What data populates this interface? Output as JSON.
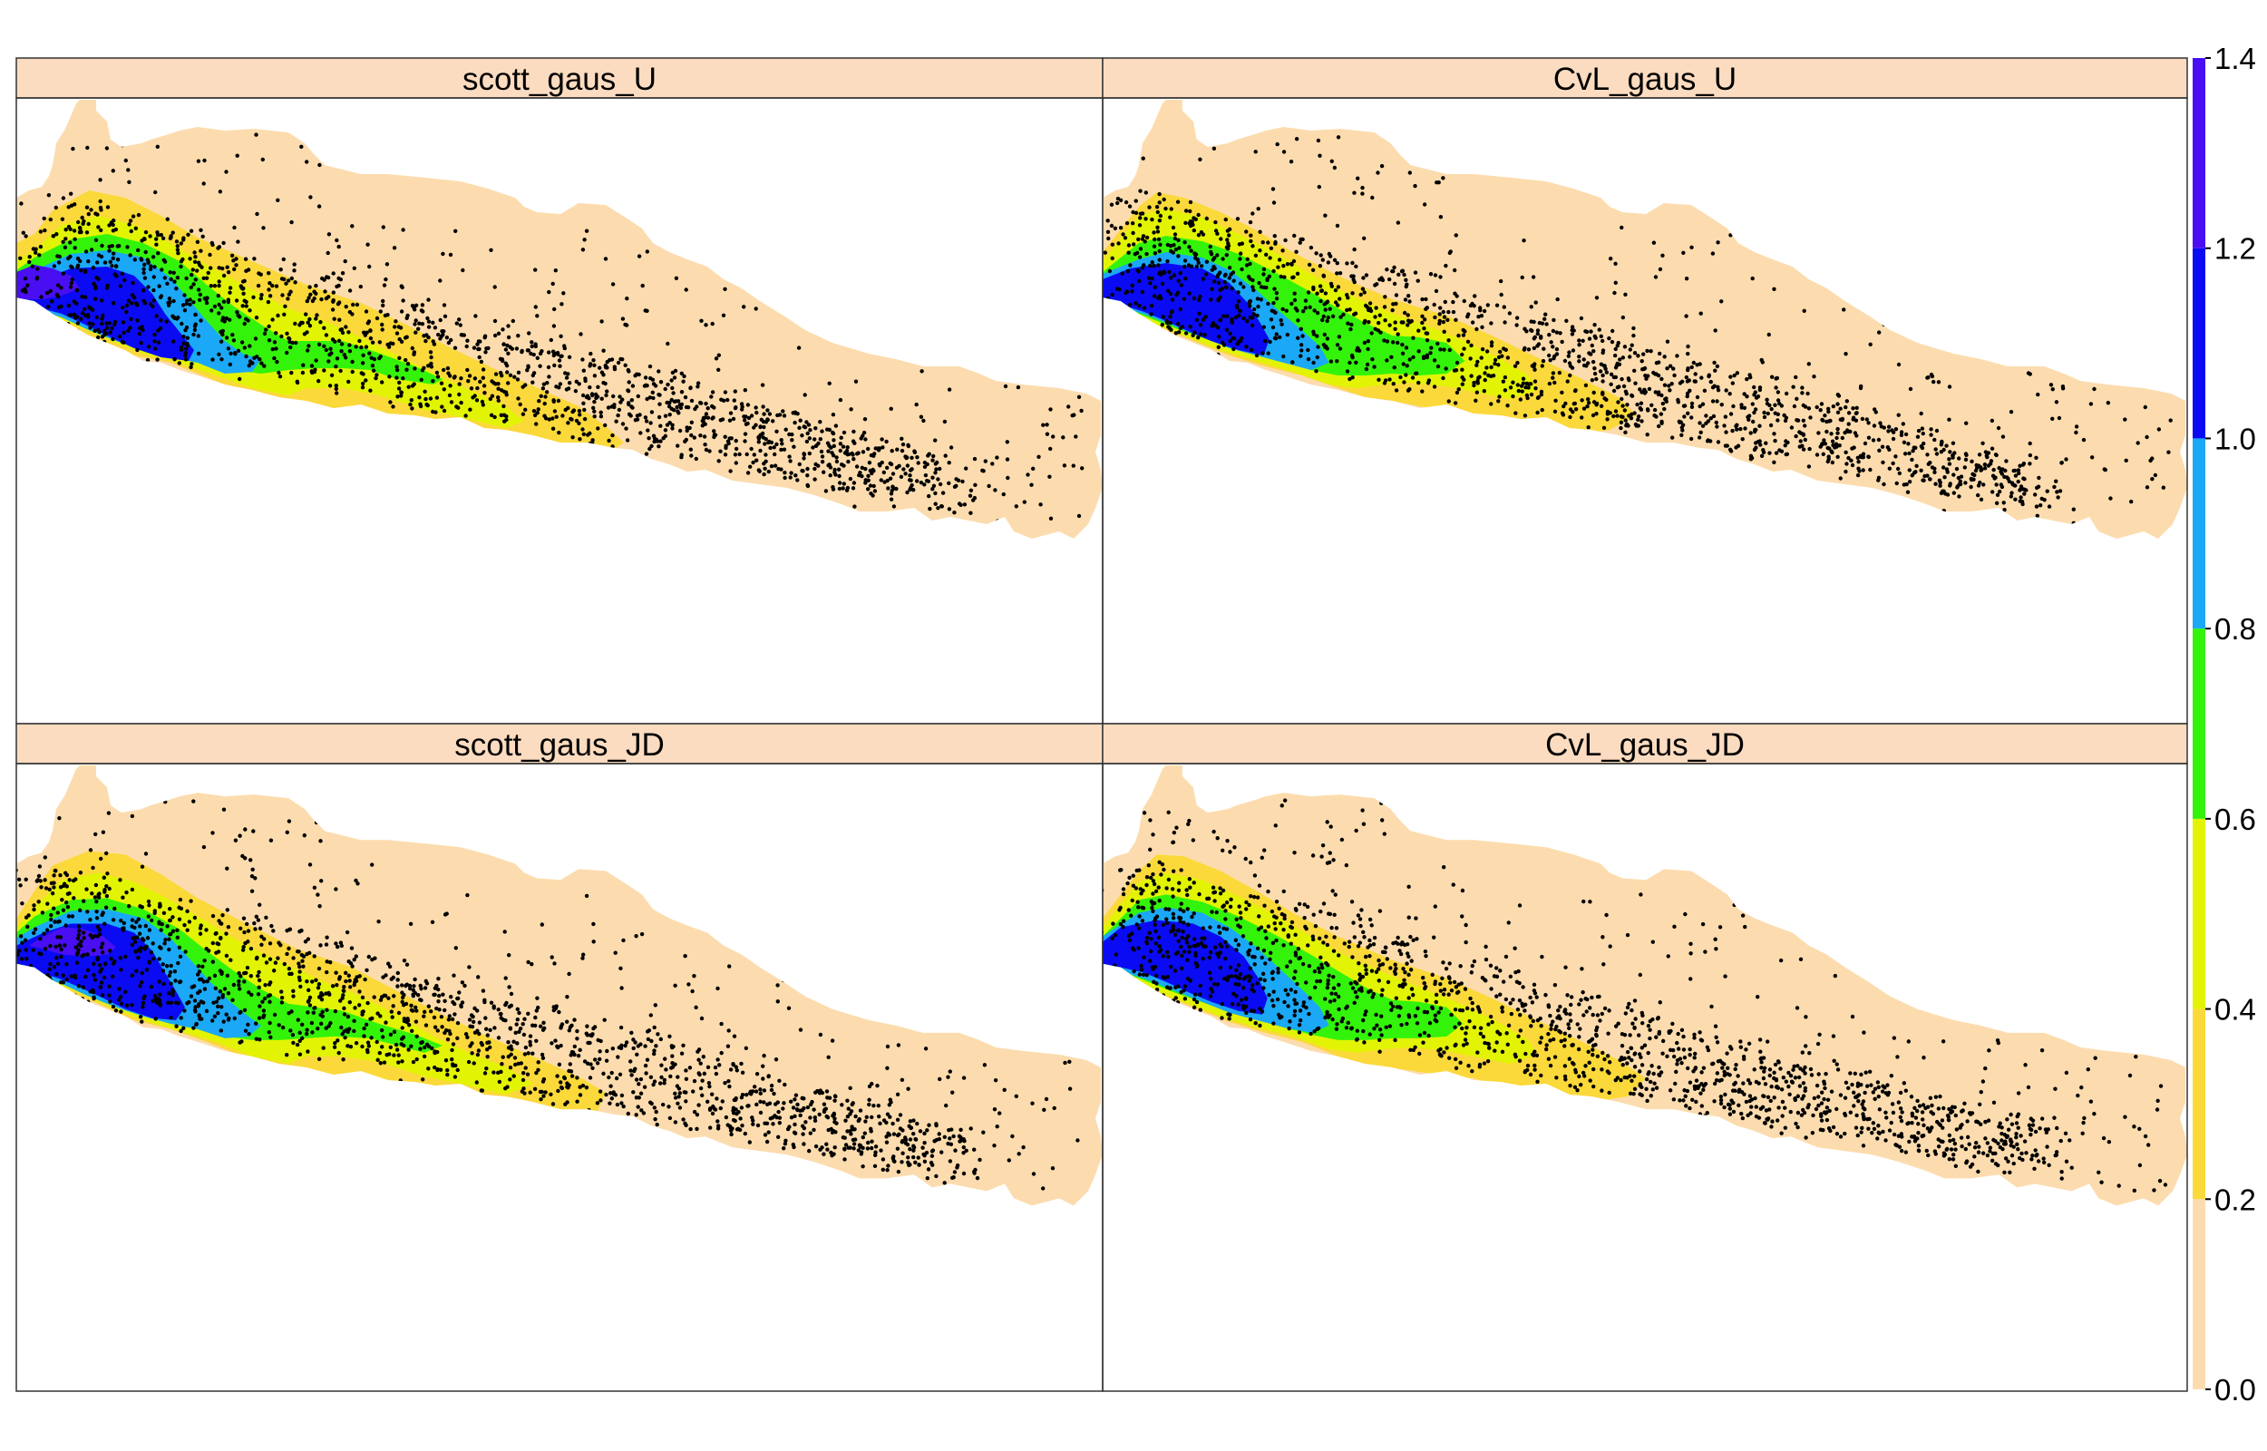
{
  "chart_data": {
    "type": "heatmap",
    "layout": "2x2 faceted filled-contour maps with overlaid point observations",
    "panels": [
      {
        "title": "scott_gaus_U"
      },
      {
        "title": "CvL_gaus_U"
      },
      {
        "title": "scott_gaus_JD"
      },
      {
        "title": "CvL_gaus_JD"
      }
    ],
    "colorbar": {
      "ticks": [
        "0.0",
        "0.2",
        "0.4",
        "0.6",
        "0.8",
        "1.0",
        "1.2",
        "1.4"
      ],
      "range": [
        0,
        1.4
      ],
      "bins": [
        {
          "from": 0.0,
          "to": 0.2,
          "color": "#fcdcae"
        },
        {
          "from": 0.2,
          "to": 0.4,
          "color": "#fbd93a"
        },
        {
          "from": 0.4,
          "to": 0.6,
          "color": "#e2f404"
        },
        {
          "from": 0.6,
          "to": 0.8,
          "color": "#33f30b"
        },
        {
          "from": 0.8,
          "to": 1.0,
          "color": "#1ba8f6"
        },
        {
          "from": 1.0,
          "to": 1.2,
          "color": "#0a0bf3"
        },
        {
          "from": 1.2,
          "to": 1.4,
          "color": "#4a0ef2"
        }
      ]
    },
    "strip_color": "#fcdcc0",
    "points_color": "#000000"
  }
}
